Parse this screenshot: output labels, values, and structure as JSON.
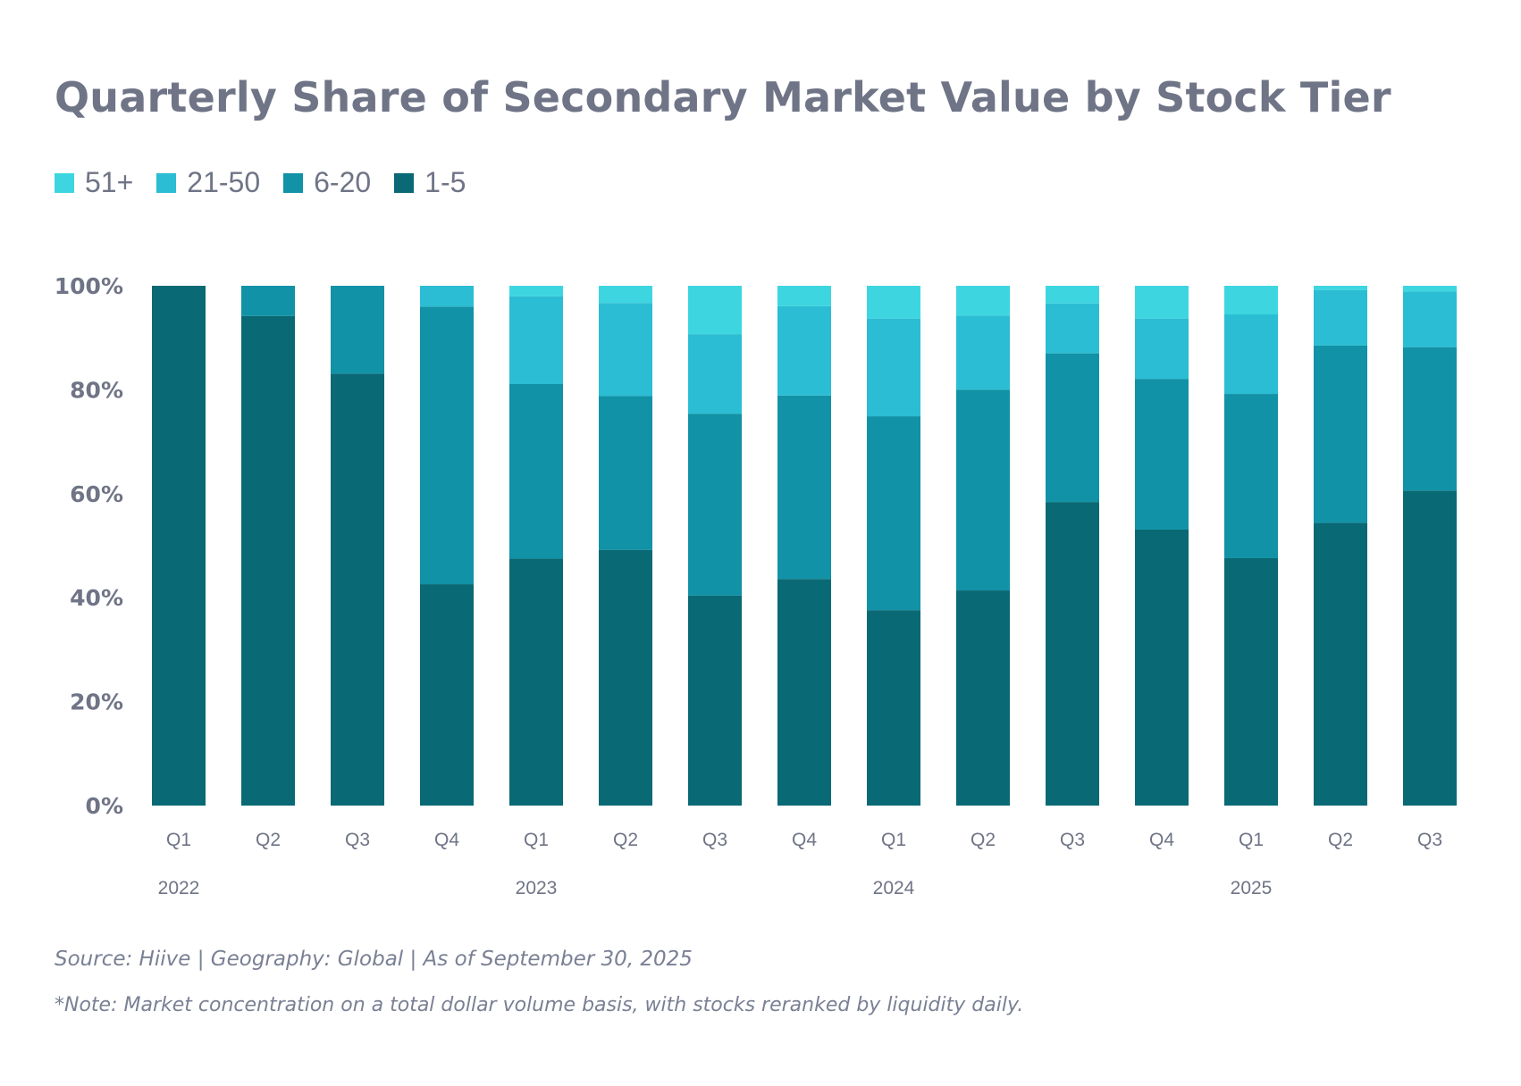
{
  "title": "Quarterly Share of Secondary Market Value by Stock Tier",
  "legend": [
    {
      "label": "51+",
      "color": "#3dd6e0"
    },
    {
      "label": "21-50",
      "color": "#2bbdd3"
    },
    {
      "label": "6-20",
      "color": "#1192a6"
    },
    {
      "label": "1-5",
      "color": "#096975"
    }
  ],
  "footer": {
    "source": "Source: Hiive | Geography: Global | As of September 30, 2025",
    "note": "*Note: Market concentration on a total dollar volume basis, with stocks reranked by liquidity daily."
  },
  "chart_data": {
    "type": "bar",
    "stacked": true,
    "title": "Quarterly Share of Secondary Market Value by Stock Tier",
    "xlabel": "",
    "ylabel": "",
    "ylim": [
      0,
      100
    ],
    "yticks": [
      {
        "value": 0,
        "label": "0%"
      },
      {
        "value": 20,
        "label": "20%"
      },
      {
        "value": 40,
        "label": "40%"
      },
      {
        "value": 60,
        "label": "60%"
      },
      {
        "value": 80,
        "label": "80%"
      },
      {
        "value": 100,
        "label": "100%"
      }
    ],
    "categories": [
      "Q1",
      "Q2",
      "Q3",
      "Q4",
      "Q1",
      "Q2",
      "Q3",
      "Q4",
      "Q1",
      "Q2",
      "Q3",
      "Q4",
      "Q1",
      "Q2",
      "Q3"
    ],
    "year_labels": [
      {
        "label": "2022",
        "at": 0
      },
      {
        "label": "2023",
        "at": 4
      },
      {
        "label": "2024",
        "at": 8
      },
      {
        "label": "2025",
        "at": 12
      }
    ],
    "series": [
      {
        "name": "1-5",
        "color": "#096975",
        "values": [
          100,
          94.2,
          83.1,
          42.6,
          47.5,
          49.2,
          40.4,
          43.6,
          37.6,
          41.4,
          58.4,
          53.1,
          47.6,
          54.4,
          60.6
        ]
      },
      {
        "name": "6-20",
        "color": "#1192a6",
        "values": [
          0,
          5.8,
          16.9,
          53.4,
          33.6,
          29.6,
          35.0,
          35.3,
          37.3,
          38.6,
          28.6,
          29.0,
          31.6,
          34.1,
          27.6
        ]
      },
      {
        "name": "21-50",
        "color": "#2bbdd3",
        "values": [
          0,
          0,
          0,
          4.0,
          16.9,
          17.9,
          15.3,
          17.2,
          18.8,
          14.3,
          9.6,
          11.6,
          15.3,
          10.7,
          10.7
        ]
      },
      {
        "name": "51+",
        "color": "#3dd6e0",
        "values": [
          0,
          0,
          0,
          0,
          2.0,
          3.3,
          9.3,
          3.9,
          6.3,
          5.7,
          3.4,
          6.3,
          5.5,
          0.8,
          1.1
        ]
      }
    ]
  }
}
